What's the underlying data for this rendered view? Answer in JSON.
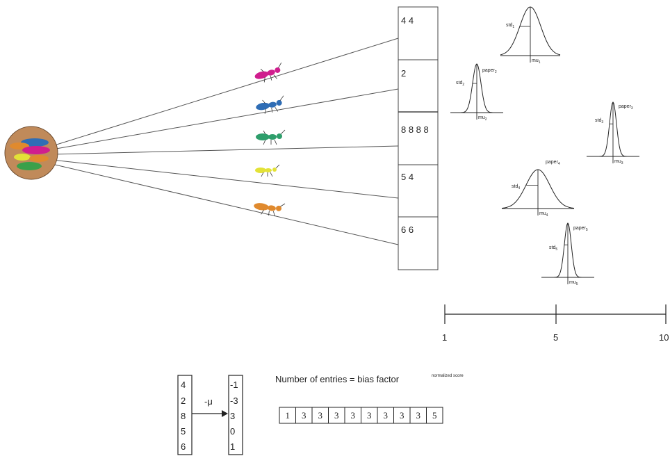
{
  "colors": {
    "magenta": "#d01e8e",
    "blue": "#2f6db5",
    "teal": "#2e9e6b",
    "yellow": "#e3e237",
    "orange": "#e08a2e",
    "nest": "#c08a5a",
    "green": "#3aa04a"
  },
  "cells": [
    "4 4",
    "2",
    "8 8 8 8",
    "5 4",
    "6 6"
  ],
  "distributions": [
    {
      "std": "std",
      "std_sub": "1",
      "mu": "mu",
      "mu_sub": "1",
      "paper": "",
      "paper_sub": ""
    },
    {
      "std": "std",
      "std_sub": "2",
      "mu": "mu",
      "mu_sub": "2",
      "paper": "paper",
      "paper_sub": "2"
    },
    {
      "std": "std",
      "std_sub": "3",
      "mu": "mu",
      "mu_sub": "3",
      "paper": "paper",
      "paper_sub": "3"
    },
    {
      "std": "std",
      "std_sub": "4",
      "mu": "mu",
      "mu_sub": "4",
      "paper": "paper",
      "paper_sub": "4"
    },
    {
      "std": "std",
      "std_sub": "5",
      "mu": "mu",
      "mu_sub": "5",
      "paper": "paper",
      "paper_sub": "5"
    }
  ],
  "axis": {
    "ticks": [
      "1",
      "5",
      "10"
    ]
  },
  "vector_in": [
    "4",
    "2",
    "8",
    "5",
    "6"
  ],
  "vector_out": [
    "-1",
    "-3",
    "3",
    "0",
    "1"
  ],
  "arrow_label": "-μ",
  "formula": {
    "text": "Number of entries = bias factor",
    "superscript": "normalized score"
  },
  "entries": [
    "1",
    "3",
    "3",
    "3",
    "3",
    "3",
    "3",
    "3",
    "3",
    "5"
  ]
}
